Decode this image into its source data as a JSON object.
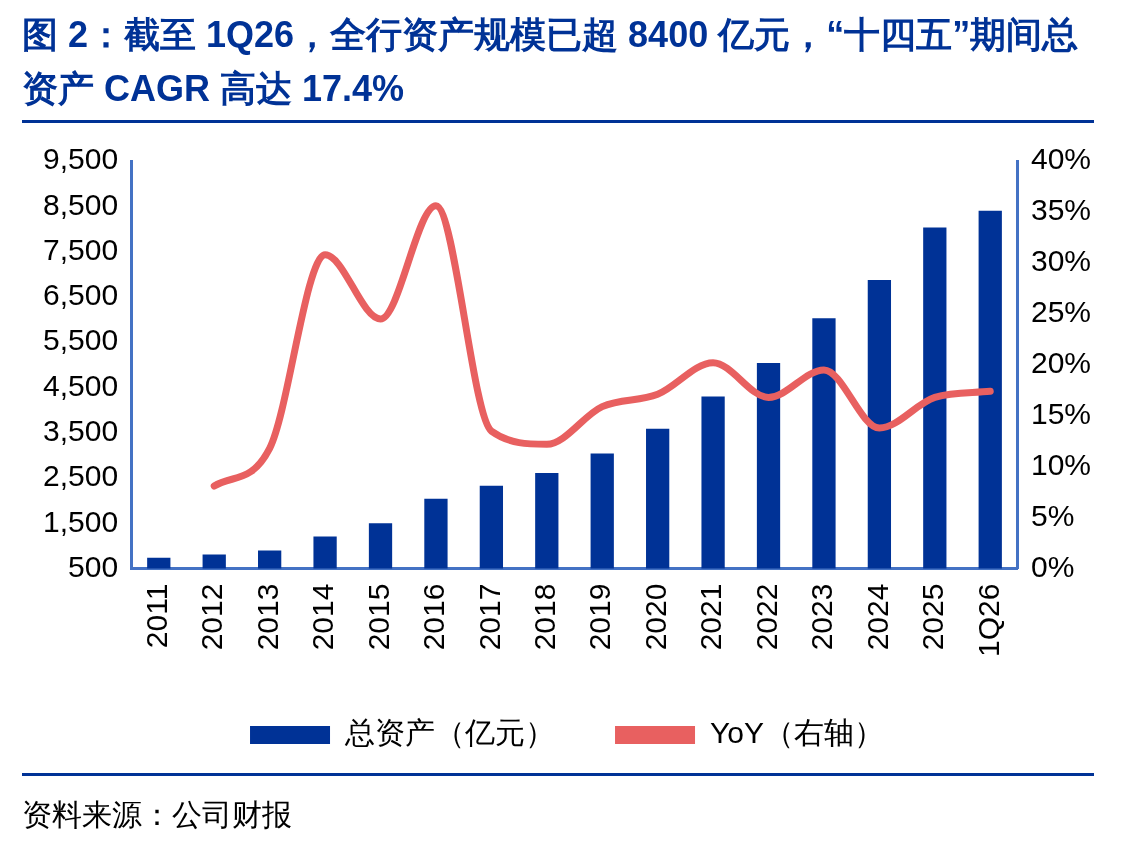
{
  "chart_data": {
    "type": "bar",
    "title": "图 2：截至 1Q26，全行资产规模已超 8400 亿元，“十四五”期间总资产 CAGR 高达 17.4%",
    "categories": [
      "2011",
      "2012",
      "2013",
      "2014",
      "2015",
      "2016",
      "2017",
      "2018",
      "2019",
      "2020",
      "2021",
      "2022",
      "2023",
      "2024",
      "2025",
      "1Q26"
    ],
    "series": [
      {
        "name": "总资产（亿元）",
        "color": "#003296",
        "values": [
          740,
          810,
          900,
          1210,
          1500,
          2040,
          2330,
          2610,
          3040,
          3590,
          4300,
          5040,
          6030,
          6870,
          8030,
          8400
        ]
      },
      {
        "name": "YoY（右轴）",
        "type": "line",
        "axis": "y2",
        "color": "#e86060",
        "values": [
          null,
          8.1,
          11.8,
          30.8,
          24.5,
          35.6,
          13.5,
          12.2,
          15.9,
          17.1,
          20.2,
          16.8,
          19.5,
          13.8,
          16.8,
          17.4
        ]
      }
    ],
    "ylim": [
      500,
      9500
    ],
    "yticks": [
      {
        "value": 500,
        "label": "500"
      },
      {
        "value": 1500,
        "label": "1,500"
      },
      {
        "value": 2500,
        "label": "2,500"
      },
      {
        "value": 3500,
        "label": "3,500"
      },
      {
        "value": 4500,
        "label": "4,500"
      },
      {
        "value": 5500,
        "label": "5,500"
      },
      {
        "value": 6500,
        "label": "6,500"
      },
      {
        "value": 7500,
        "label": "7,500"
      },
      {
        "value": 8500,
        "label": "8,500"
      },
      {
        "value": 9500,
        "label": "9,500"
      }
    ],
    "y2lim": [
      0,
      40
    ],
    "y2ticks": [
      {
        "value": 0,
        "label": "0%"
      },
      {
        "value": 5,
        "label": "5%"
      },
      {
        "value": 10,
        "label": "10%"
      },
      {
        "value": 15,
        "label": "15%"
      },
      {
        "value": 20,
        "label": "20%"
      },
      {
        "value": 25,
        "label": "25%"
      },
      {
        "value": 30,
        "label": "30%"
      },
      {
        "value": 35,
        "label": "35%"
      },
      {
        "value": 40,
        "label": "40%"
      }
    ],
    "legend": "bottom",
    "grid": false,
    "marker": "none",
    "annotations": [
      "资料来源：公司财报"
    ]
  }
}
